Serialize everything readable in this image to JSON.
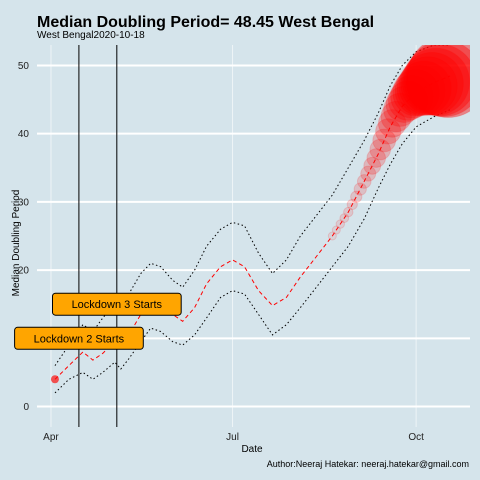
{
  "chart_data": {
    "type": "line",
    "title": "Median Doubling Period=  48.45 West Bengal",
    "subtitle": "West Bengal2020-10-18",
    "xlabel": "Date",
    "ylabel": "Median Doubling Period",
    "caption": "Author:Neeraj Hatekar: neeraj.hatekar@gmail.com",
    "x_ticks": [
      {
        "label": "Apr",
        "date": "2020-04-01"
      },
      {
        "label": "Jul",
        "date": "2020-07-01"
      },
      {
        "label": "Oct",
        "date": "2020-10-01"
      }
    ],
    "y_ticks": [
      0,
      10,
      20,
      30,
      40,
      50
    ],
    "xlim": [
      "2020-03-25",
      "2020-10-28"
    ],
    "ylim": [
      -3,
      53
    ],
    "grid": true,
    "legend": "none",
    "colors": {
      "background": "#d5e4eb",
      "median_line": "#ff0000",
      "bubble": "#ff0000",
      "label_fill": "#ffa500",
      "vline": "#000000",
      "grid": "#ffffff"
    },
    "annotations": [
      {
        "text": "Lockdown 2 Starts",
        "date": "2020-04-15",
        "y": 10
      },
      {
        "text": "Lockdown 3 Starts",
        "date": "2020-05-04",
        "y": 15
      }
    ],
    "vlines": [
      "2020-04-15",
      "2020-05-04"
    ],
    "series": [
      {
        "role": "median",
        "points": [
          [
            "2020-04-03",
            4
          ],
          [
            "2020-04-10",
            6
          ],
          [
            "2020-04-17",
            8
          ],
          [
            "2020-04-22",
            6.8
          ],
          [
            "2020-04-27",
            7.8
          ],
          [
            "2020-05-03",
            9.5
          ],
          [
            "2020-05-06",
            9
          ],
          [
            "2020-05-10",
            10.5
          ],
          [
            "2020-05-16",
            13.5
          ],
          [
            "2020-05-21",
            16
          ],
          [
            "2020-05-26",
            15.5
          ],
          [
            "2020-06-01",
            13.5
          ],
          [
            "2020-06-06",
            12.5
          ],
          [
            "2020-06-12",
            14.5
          ],
          [
            "2020-06-18",
            18
          ],
          [
            "2020-06-25",
            20.5
          ],
          [
            "2020-07-01",
            21.5
          ],
          [
            "2020-07-07",
            20.5
          ],
          [
            "2020-07-14",
            17
          ],
          [
            "2020-07-21",
            14.8
          ],
          [
            "2020-07-28",
            16
          ],
          [
            "2020-08-04",
            19
          ],
          [
            "2020-08-12",
            22
          ],
          [
            "2020-08-20",
            25
          ],
          [
            "2020-08-28",
            28.5
          ],
          [
            "2020-09-05",
            33
          ],
          [
            "2020-09-12",
            37
          ],
          [
            "2020-09-18",
            41
          ],
          [
            "2020-09-24",
            44
          ],
          [
            "2020-10-01",
            46
          ],
          [
            "2020-10-10",
            47.5
          ],
          [
            "2020-10-18",
            48.45
          ]
        ]
      },
      {
        "role": "upper",
        "points": [
          [
            "2020-04-03",
            6
          ],
          [
            "2020-04-10",
            9
          ],
          [
            "2020-04-17",
            12
          ],
          [
            "2020-04-22",
            11
          ],
          [
            "2020-04-27",
            13
          ],
          [
            "2020-05-03",
            15
          ],
          [
            "2020-05-06",
            14
          ],
          [
            "2020-05-10",
            16.5
          ],
          [
            "2020-05-16",
            19.5
          ],
          [
            "2020-05-21",
            21
          ],
          [
            "2020-05-26",
            20.5
          ],
          [
            "2020-06-01",
            18.5
          ],
          [
            "2020-06-06",
            17.5
          ],
          [
            "2020-06-12",
            20
          ],
          [
            "2020-06-18",
            23.5
          ],
          [
            "2020-06-25",
            26
          ],
          [
            "2020-07-01",
            27
          ],
          [
            "2020-07-07",
            26.5
          ],
          [
            "2020-07-14",
            22.5
          ],
          [
            "2020-07-21",
            19.5
          ],
          [
            "2020-07-28",
            21.5
          ],
          [
            "2020-08-04",
            25
          ],
          [
            "2020-08-12",
            28
          ],
          [
            "2020-08-20",
            31
          ],
          [
            "2020-08-28",
            35
          ],
          [
            "2020-09-05",
            39
          ],
          [
            "2020-09-12",
            43
          ],
          [
            "2020-09-18",
            47
          ],
          [
            "2020-09-24",
            50
          ],
          [
            "2020-10-01",
            52
          ],
          [
            "2020-10-10",
            53
          ],
          [
            "2020-10-18",
            53
          ]
        ]
      },
      {
        "role": "lower",
        "points": [
          [
            "2020-04-03",
            2
          ],
          [
            "2020-04-10",
            4
          ],
          [
            "2020-04-17",
            5
          ],
          [
            "2020-04-22",
            4
          ],
          [
            "2020-04-27",
            5
          ],
          [
            "2020-05-03",
            6.5
          ],
          [
            "2020-05-06",
            5.5
          ],
          [
            "2020-05-10",
            7
          ],
          [
            "2020-05-16",
            9.5
          ],
          [
            "2020-05-21",
            11.5
          ],
          [
            "2020-05-26",
            11
          ],
          [
            "2020-06-01",
            9.5
          ],
          [
            "2020-06-06",
            9
          ],
          [
            "2020-06-12",
            10.5
          ],
          [
            "2020-06-18",
            13
          ],
          [
            "2020-06-25",
            16
          ],
          [
            "2020-07-01",
            17
          ],
          [
            "2020-07-07",
            16.5
          ],
          [
            "2020-07-14",
            13.5
          ],
          [
            "2020-07-21",
            10.5
          ],
          [
            "2020-07-28",
            12
          ],
          [
            "2020-08-04",
            14.5
          ],
          [
            "2020-08-12",
            17.5
          ],
          [
            "2020-08-20",
            20.5
          ],
          [
            "2020-08-28",
            23.5
          ],
          [
            "2020-09-05",
            27.5
          ],
          [
            "2020-09-12",
            32
          ],
          [
            "2020-09-18",
            35.5
          ],
          [
            "2020-09-24",
            38.5
          ],
          [
            "2020-10-01",
            41
          ],
          [
            "2020-10-10",
            42.5
          ],
          [
            "2020-10-18",
            43.5
          ]
        ]
      }
    ],
    "bubbles_from": "2020-08-20"
  }
}
